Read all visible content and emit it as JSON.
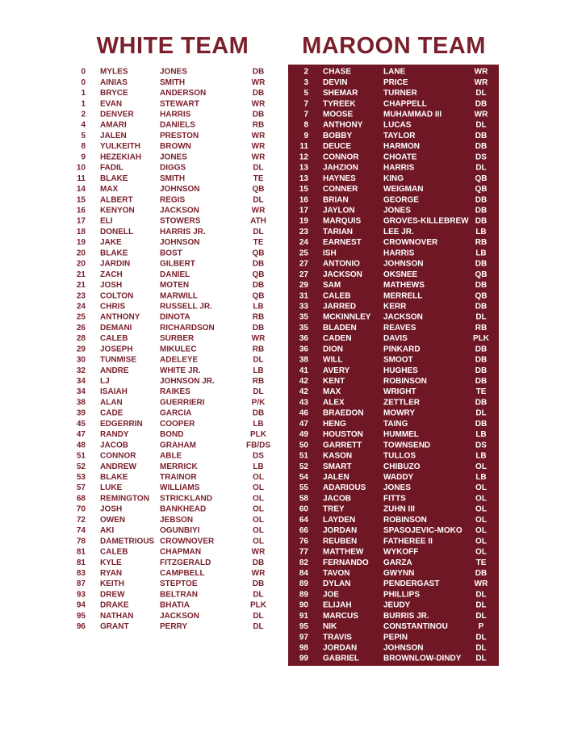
{
  "white_team": {
    "title": "WHITE TEAM",
    "rows": [
      [
        "0",
        "MYLES",
        "JONES",
        "DB"
      ],
      [
        "0",
        "AINIAS",
        "SMITH",
        "WR"
      ],
      [
        "1",
        "BRYCE",
        "ANDERSON",
        "DB"
      ],
      [
        "1",
        "EVAN",
        "STEWART",
        "WR"
      ],
      [
        "2",
        "DENVER",
        "HARRIS",
        "DB"
      ],
      [
        "4",
        "AMARI",
        "DANIELS",
        "RB"
      ],
      [
        "5",
        "JALEN",
        "PRESTON",
        "WR"
      ],
      [
        "8",
        "YULKEITH",
        "BROWN",
        "WR"
      ],
      [
        "9",
        "HEZEKIAH",
        "JONES",
        "WR"
      ],
      [
        "10",
        "FADIL",
        "DIGGS",
        "DL"
      ],
      [
        "11",
        "BLAKE",
        "SMITH",
        "TE"
      ],
      [
        "14",
        "MAX",
        "JOHNSON",
        "QB"
      ],
      [
        "15",
        "ALBERT",
        "REGIS",
        "DL"
      ],
      [
        "16",
        "KENYON",
        "JACKSON",
        "WR"
      ],
      [
        "17",
        "ELI",
        "STOWERS",
        "ATH"
      ],
      [
        "18",
        "DONELL",
        "HARRIS JR.",
        "DL"
      ],
      [
        "19",
        "JAKE",
        "JOHNSON",
        "TE"
      ],
      [
        "20",
        "BLAKE",
        "BOST",
        "QB"
      ],
      [
        "20",
        "JARDIN",
        "GILBERT",
        "DB"
      ],
      [
        "21",
        "ZACH",
        "DANIEL",
        "QB"
      ],
      [
        "21",
        "JOSH",
        "MOTEN",
        "DB"
      ],
      [
        "23",
        "COLTON",
        "MARWILL",
        "QB"
      ],
      [
        "24",
        "CHRIS",
        "RUSSELL JR.",
        "LB"
      ],
      [
        "25",
        "ANTHONY",
        "DINOTA",
        "RB"
      ],
      [
        "26",
        "DEMANI",
        "RICHARDSON",
        "DB"
      ],
      [
        "28",
        "CALEB",
        "SURBER",
        "WR"
      ],
      [
        "29",
        "JOSEPH",
        "MIKULEC",
        "RB"
      ],
      [
        "30",
        "TUNMISE",
        "ADELEYE",
        "DL"
      ],
      [
        "32",
        "ANDRE",
        "WHITE JR.",
        "LB"
      ],
      [
        "34",
        "LJ",
        "JOHNSON JR.",
        "RB"
      ],
      [
        "34",
        "ISAIAH",
        "RAIKES",
        "DL"
      ],
      [
        "38",
        "ALAN",
        "GUERRIERI",
        "P/K"
      ],
      [
        "39",
        "CADE",
        "GARCIA",
        "DB"
      ],
      [
        "45",
        "EDGERRIN",
        "COOPER",
        "LB"
      ],
      [
        "47",
        "RANDY",
        "BOND",
        "PLK"
      ],
      [
        "48",
        "JACOB",
        "GRAHAM",
        "FB/DS"
      ],
      [
        "51",
        "CONNOR",
        "ABLE",
        "DS"
      ],
      [
        "52",
        "ANDREW",
        "MERRICK",
        "LB"
      ],
      [
        "53",
        "BLAKE",
        "TRAINOR",
        "OL"
      ],
      [
        "57",
        "LUKE",
        "WILLIAMS",
        "OL"
      ],
      [
        "68",
        "REMINGTON",
        "STRICKLAND",
        "OL"
      ],
      [
        "70",
        "JOSH",
        "BANKHEAD",
        "OL"
      ],
      [
        "72",
        "OWEN",
        "JEBSON",
        "OL"
      ],
      [
        "74",
        "AKI",
        "OGUNBIYI",
        "OL"
      ],
      [
        "78",
        "DAMETRIOUS",
        "CROWNOVER",
        "OL"
      ],
      [
        "81",
        "CALEB",
        "CHAPMAN",
        "WR"
      ],
      [
        "81",
        "KYLE",
        "FITZGERALD",
        "DB"
      ],
      [
        "83",
        "RYAN",
        "CAMPBELL",
        "WR"
      ],
      [
        "87",
        "KEITH",
        "STEPTOE",
        "DB"
      ],
      [
        "93",
        "DREW",
        "BELTRAN",
        "DL"
      ],
      [
        "94",
        "DRAKE",
        "BHATIA",
        "PLK"
      ],
      [
        "95",
        "NATHAN",
        "JACKSON",
        "DL"
      ],
      [
        "96",
        "GRANT",
        "PERRY",
        "DL"
      ]
    ]
  },
  "maroon_team": {
    "title": "MAROON TEAM",
    "rows": [
      [
        "2",
        "CHASE",
        "LANE",
        "WR"
      ],
      [
        "3",
        "DEVIN",
        "PRICE",
        "WR"
      ],
      [
        "5",
        "SHEMAR",
        "TURNER",
        "DL"
      ],
      [
        "7",
        "TYREEK",
        "CHAPPELL",
        "DB"
      ],
      [
        "7",
        "MOOSE",
        "MUHAMMAD III",
        "WR"
      ],
      [
        "8",
        "ANTHONY",
        "LUCAS",
        "DL"
      ],
      [
        "9",
        "BOBBY",
        "TAYLOR",
        "DB"
      ],
      [
        "11",
        "DEUCE",
        "HARMON",
        "DB"
      ],
      [
        "12",
        "CONNOR",
        "CHOATE",
        "DS"
      ],
      [
        "13",
        "JAHZION",
        "HARRIS",
        "DL"
      ],
      [
        "13",
        "HAYNES",
        "KING",
        "QB"
      ],
      [
        "15",
        "CONNER",
        "WEIGMAN",
        "QB"
      ],
      [
        "16",
        "BRIAN",
        "GEORGE",
        "DB"
      ],
      [
        "17",
        "JAYLON",
        "JONES",
        "DB"
      ],
      [
        "19",
        "MARQUIS",
        "GROVES-KILLEBREW",
        "DB"
      ],
      [
        "23",
        "TARIAN",
        "LEE JR.",
        "LB"
      ],
      [
        "24",
        "EARNEST",
        "CROWNOVER",
        "RB"
      ],
      [
        "25",
        "ISH",
        "HARRIS",
        "LB"
      ],
      [
        "27",
        "ANTONIO",
        "JOHNSON",
        "DB"
      ],
      [
        "27",
        "JACKSON",
        "OKSNEE",
        "QB"
      ],
      [
        "29",
        "SAM",
        "MATHEWS",
        "DB"
      ],
      [
        "31",
        "CALEB",
        "MERRELL",
        "QB"
      ],
      [
        "33",
        "JARRED",
        "KERR",
        "DB"
      ],
      [
        "35",
        "MCKINNLEY",
        "JACKSON",
        "DL"
      ],
      [
        "35",
        "BLADEN",
        "REAVES",
        "RB"
      ],
      [
        "36",
        "CADEN",
        "DAVIS",
        "PLK"
      ],
      [
        "36",
        "DION",
        "PINKARD",
        "DB"
      ],
      [
        "38",
        "WILL",
        "SMOOT",
        "DB"
      ],
      [
        "41",
        "AVERY",
        "HUGHES",
        "DB"
      ],
      [
        "42",
        "KENT",
        "ROBINSON",
        "DB"
      ],
      [
        "42",
        "MAX",
        "WRIGHT",
        "TE"
      ],
      [
        "43",
        "ALEX",
        "ZETTLER",
        "DB"
      ],
      [
        "46",
        "BRAEDON",
        "MOWRY",
        "DL"
      ],
      [
        "47",
        "HENG",
        "TAING",
        "DB"
      ],
      [
        "49",
        "HOUSTON",
        "HUMMEL",
        "LB"
      ],
      [
        "50",
        "GARRETT",
        "TOWNSEND",
        "DS"
      ],
      [
        "51",
        "KASON",
        "TULLOS",
        "LB"
      ],
      [
        "52",
        "SMART",
        "CHIBUZO",
        "OL"
      ],
      [
        "54",
        "JALEN",
        "WADDY",
        "LB"
      ],
      [
        "55",
        "ADARIOUS",
        "JONES",
        "OL"
      ],
      [
        "58",
        "JACOB",
        "FITTS",
        "OL"
      ],
      [
        "60",
        "TREY",
        "ZUHN III",
        "OL"
      ],
      [
        "64",
        "LAYDEN",
        "ROBINSON",
        "OL"
      ],
      [
        "66",
        "JORDAN",
        "SPASOJEVIC-MOKO",
        "OL"
      ],
      [
        "76",
        "REUBEN",
        "FATHEREE II",
        "OL"
      ],
      [
        "77",
        "MATTHEW",
        "WYKOFF",
        "OL"
      ],
      [
        "82",
        "FERNANDO",
        "GARZA",
        "TE"
      ],
      [
        "84",
        "TAVON",
        "GWYNN",
        "DB"
      ],
      [
        "89",
        "DYLAN",
        "PENDERGAST",
        "WR"
      ],
      [
        "89",
        "JOE",
        "PHILLIPS",
        "DL"
      ],
      [
        "90",
        "ELIJAH",
        "JEUDY",
        "DL"
      ],
      [
        "91",
        "MARCUS",
        "BURRIS JR.",
        "DL"
      ],
      [
        "95",
        "NIK",
        "CONSTANTINOU",
        "P"
      ],
      [
        "97",
        "TRAVIS",
        "PEPIN",
        "DL"
      ],
      [
        "98",
        "JORDAN",
        "JOHNSON",
        "DL"
      ],
      [
        "99",
        "GABRIEL",
        "BROWNLOW-DINDY",
        "DL"
      ]
    ]
  }
}
